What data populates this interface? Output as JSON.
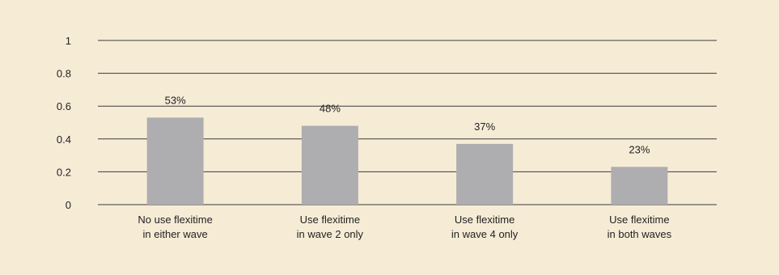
{
  "chart_data": {
    "type": "bar",
    "categories": [
      "No use flexitime in either wave",
      "Use flexitime in wave 2 only",
      "Use flexitime in wave 4 only",
      "Use flexitime in both waves"
    ],
    "category_lines": [
      [
        "No use flexitime",
        "in either wave"
      ],
      [
        "Use flexitime",
        "in wave 2 only"
      ],
      [
        "Use flexitime",
        "in wave 4 only"
      ],
      [
        "Use flexitime",
        "in both waves"
      ]
    ],
    "values": [
      0.53,
      0.48,
      0.37,
      0.23
    ],
    "data_labels": [
      "53%",
      "48%",
      "37%",
      "23%"
    ],
    "yticks": [
      0,
      0.2,
      0.4,
      0.6,
      0.8,
      1
    ],
    "ytick_labels": [
      "0",
      "0.2",
      "0.4",
      "0.6",
      "0.8",
      "1"
    ],
    "ylim": [
      0,
      1
    ],
    "grid": true,
    "legend": "none",
    "title": "",
    "xlabel": "",
    "ylabel": "",
    "colors": {
      "background": "#f6ecd6",
      "bar": "#aeaeb0",
      "gridline": "#3a3a3a",
      "text": "#222222"
    }
  }
}
